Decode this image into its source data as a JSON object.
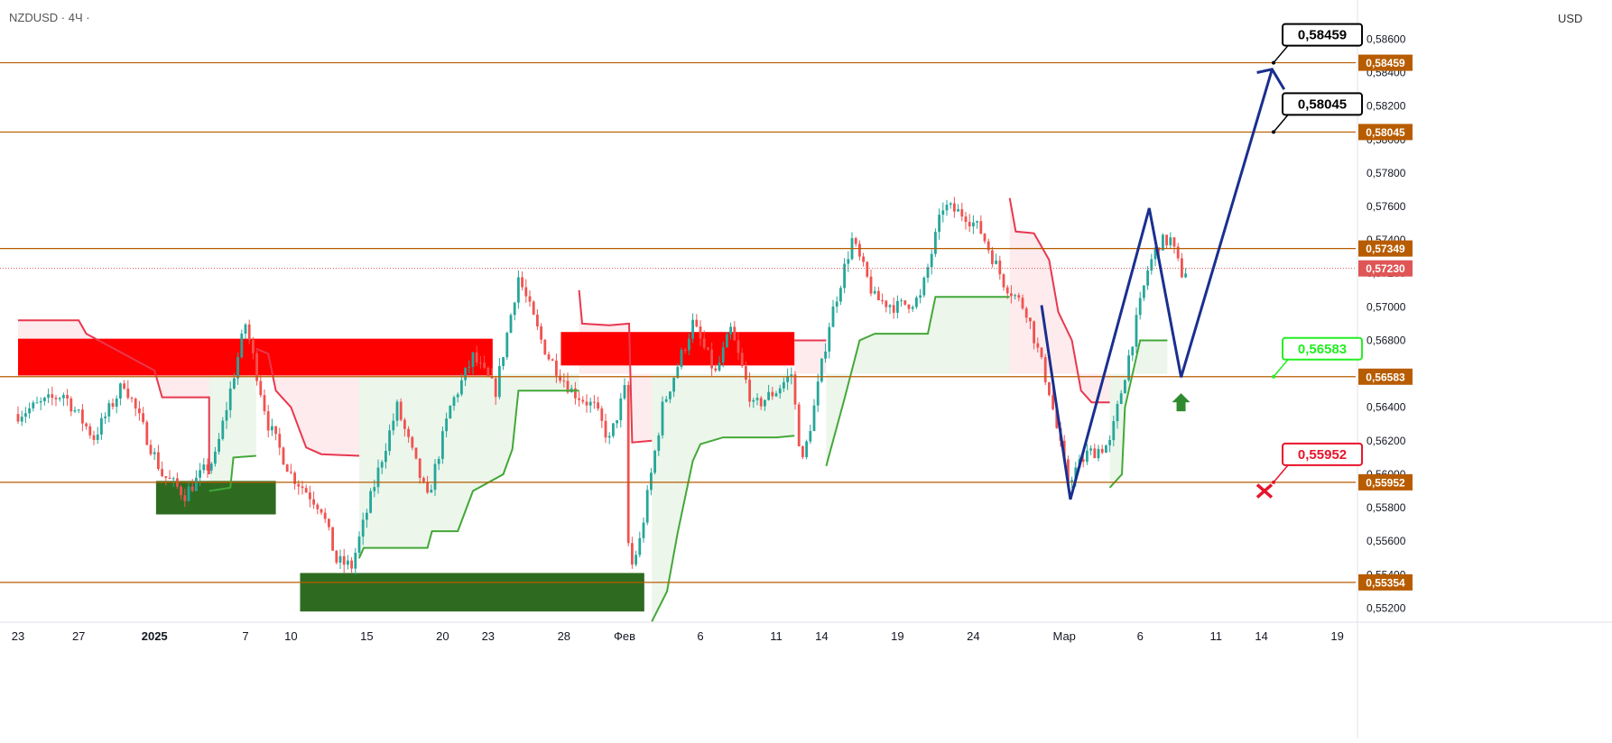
{
  "symbol": "NZDUSD · 4Ч ·",
  "currency": "USD",
  "colors": {
    "level_line": "#b85c00",
    "level_badge": "#b85c00",
    "price_badge": "#e05555",
    "up_candle": "#26a69a",
    "down_candle": "#ef5350",
    "supertrend_up": "#43a838",
    "supertrend_down": "#e8384f",
    "supply_zone": "#ff0000",
    "demand_zone": "#2e6b21",
    "forecast_line": "#1a2f8f",
    "target_callout": "#000000",
    "buy_callout": "#22ee22",
    "stop_callout": "#e8142a"
  },
  "chart_data": {
    "type": "candlestick",
    "ylim": [
      0.551,
      0.5878
    ],
    "y_ticks": [
      "0,55200",
      "0,55400",
      "0,55600",
      "0,55800",
      "0,56000",
      "0,56200",
      "0,56400",
      "0,56600",
      "0,56800",
      "0,57000",
      "0,57200",
      "0,57400",
      "0,57600",
      "0,57800",
      "0,58000",
      "0,58200",
      "0,58400",
      "0,58600"
    ],
    "x_ticks": [
      {
        "label": "23",
        "day": 0
      },
      {
        "label": "27",
        "day": 4
      },
      {
        "label": "2025",
        "day": 9
      },
      {
        "label": "7",
        "day": 15
      },
      {
        "label": "10",
        "day": 18
      },
      {
        "label": "15",
        "day": 23
      },
      {
        "label": "20",
        "day": 28
      },
      {
        "label": "23",
        "day": 31
      },
      {
        "label": "28",
        "day": 36
      },
      {
        "label": "Фев",
        "day": 40
      },
      {
        "label": "6",
        "day": 45
      },
      {
        "label": "11",
        "day": 50
      },
      {
        "label": "14",
        "day": 53
      },
      {
        "label": "19",
        "day": 58
      },
      {
        "label": "24",
        "day": 63
      },
      {
        "label": "Мар",
        "day": 69
      },
      {
        "label": "6",
        "day": 74
      },
      {
        "label": "11",
        "day": 79
      },
      {
        "label": "14",
        "day": 82
      },
      {
        "label": "19",
        "day": 87
      }
    ],
    "price_anchors": [
      [
        0,
        0.5636
      ],
      [
        3,
        0.5648
      ],
      [
        5,
        0.5622
      ],
      [
        7,
        0.5655
      ],
      [
        9.5,
        0.56
      ],
      [
        11,
        0.5588
      ],
      [
        13,
        0.561
      ],
      [
        15,
        0.569
      ],
      [
        16.5,
        0.563
      ],
      [
        18,
        0.56
      ],
      [
        20,
        0.558
      ],
      [
        21,
        0.5548
      ],
      [
        22,
        0.5545
      ],
      [
        24,
        0.561
      ],
      [
        25,
        0.564
      ],
      [
        27,
        0.5585
      ],
      [
        28.5,
        0.564
      ],
      [
        30,
        0.567
      ],
      [
        31.5,
        0.565
      ],
      [
        33,
        0.5718
      ],
      [
        34.5,
        0.568
      ],
      [
        35,
        0.567
      ],
      [
        36.5,
        0.565
      ],
      [
        38,
        0.564
      ],
      [
        39,
        0.562
      ],
      [
        40,
        0.565
      ],
      [
        40.3,
        0.554
      ],
      [
        41,
        0.556
      ],
      [
        42.5,
        0.564
      ],
      [
        44.5,
        0.569
      ],
      [
        46,
        0.566
      ],
      [
        47,
        0.5686
      ],
      [
        48.5,
        0.564
      ],
      [
        50,
        0.565
      ],
      [
        51,
        0.566
      ],
      [
        51.7,
        0.5605
      ],
      [
        52.5,
        0.564
      ],
      [
        53.5,
        0.569
      ],
      [
        55,
        0.574
      ],
      [
        56.5,
        0.5705
      ],
      [
        58,
        0.57
      ],
      [
        59.5,
        0.5705
      ],
      [
        61,
        0.576
      ],
      [
        62.5,
        0.5755
      ],
      [
        63.5,
        0.5745
      ],
      [
        65,
        0.5715
      ],
      [
        66.5,
        0.5698
      ],
      [
        68,
        0.565
      ],
      [
        69.2,
        0.5596
      ],
      [
        70.5,
        0.5612
      ],
      [
        72,
        0.5618
      ],
      [
        73,
        0.566
      ],
      [
        74.5,
        0.5722
      ],
      [
        75.2,
        0.5738
      ],
      [
        76,
        0.574
      ],
      [
        76.7,
        0.572
      ],
      [
        77.2,
        0.5723
      ]
    ],
    "price_range": {
      "high": 0.577,
      "low": 0.553
    },
    "levels": [
      {
        "label": "0,58459",
        "value": 0.58459
      },
      {
        "label": "0,58045",
        "value": 0.58045
      },
      {
        "label": "0,57349",
        "value": 0.57349
      },
      {
        "label": "0,56583",
        "value": 0.56583
      },
      {
        "label": "0,55952",
        "value": 0.55952
      },
      {
        "label": "0,55354",
        "value": 0.55354
      }
    ],
    "current_price": {
      "label": "0,57230",
      "value": 0.5723
    },
    "supply_zones": [
      {
        "x0": 0,
        "x1": 31.3,
        "y0": 0.5659,
        "y1": 0.5681
      },
      {
        "x0": 35.8,
        "x1": 51.2,
        "y0": 0.5665,
        "y1": 0.5685
      }
    ],
    "demand_zones": [
      {
        "x0": 9.1,
        "x1": 17.0,
        "y0": 0.5576,
        "y1": 0.5596
      },
      {
        "x0": 18.6,
        "x1": 41.3,
        "y0": 0.5518,
        "y1": 0.5541
      }
    ],
    "supertrend_down": [
      [
        [
          0,
          0.5692
        ],
        [
          4,
          0.5692
        ],
        [
          4.5,
          0.5684
        ],
        [
          9,
          0.5662
        ],
        [
          9.5,
          0.5646
        ],
        [
          12.6,
          0.5646
        ],
        [
          12.6,
          0.56
        ]
      ],
      [
        [
          15.7,
          0.5675
        ],
        [
          16.5,
          0.5672
        ],
        [
          17,
          0.565
        ],
        [
          18,
          0.564
        ],
        [
          19,
          0.5616
        ],
        [
          20,
          0.5612
        ],
        [
          22.5,
          0.5611
        ]
      ],
      [
        [
          37,
          0.571
        ],
        [
          37.2,
          0.569
        ],
        [
          39,
          0.5689
        ],
        [
          40.3,
          0.569
        ],
        [
          40.5,
          0.5619
        ],
        [
          41.8,
          0.562
        ]
      ],
      [
        [
          51.2,
          0.568
        ],
        [
          53.3,
          0.568
        ]
      ],
      [
        [
          65.4,
          0.5765
        ],
        [
          65.8,
          0.5745
        ],
        [
          67,
          0.5744
        ],
        [
          68,
          0.5728
        ],
        [
          68.6,
          0.5697
        ],
        [
          69.5,
          0.568
        ],
        [
          70.1,
          0.565
        ],
        [
          70.8,
          0.5643
        ],
        [
          72,
          0.5643
        ]
      ]
    ],
    "supertrend_up": [
      [
        [
          12.6,
          0.559
        ],
        [
          14,
          0.5592
        ],
        [
          14.2,
          0.561
        ],
        [
          15.7,
          0.5611
        ]
      ],
      [
        [
          22.5,
          0.555
        ],
        [
          22.8,
          0.5556
        ],
        [
          27,
          0.5556
        ],
        [
          27.3,
          0.5566
        ],
        [
          29,
          0.5566
        ],
        [
          30,
          0.559
        ],
        [
          32,
          0.56
        ],
        [
          32.6,
          0.5615
        ],
        [
          33,
          0.565
        ],
        [
          37,
          0.565
        ]
      ],
      [
        [
          41.8,
          0.5512
        ],
        [
          42.8,
          0.553
        ],
        [
          43.5,
          0.5565
        ],
        [
          44.5,
          0.5608
        ],
        [
          45,
          0.5618
        ],
        [
          46.5,
          0.5622
        ],
        [
          50,
          0.5622
        ],
        [
          51.2,
          0.5623
        ]
      ],
      [
        [
          53.3,
          0.5605
        ],
        [
          54.5,
          0.5645
        ],
        [
          55.5,
          0.568
        ],
        [
          56.5,
          0.5684
        ],
        [
          60,
          0.5684
        ],
        [
          60.5,
          0.5706
        ],
        [
          65,
          0.5706
        ],
        [
          65.4,
          0.5706
        ]
      ],
      [
        [
          72,
          0.5592
        ],
        [
          72.8,
          0.56
        ],
        [
          73,
          0.564
        ],
        [
          74,
          0.568
        ],
        [
          75.8,
          0.568
        ]
      ]
    ],
    "forecast_path": [
      [
        67.5,
        0.5701
      ],
      [
        69.4,
        0.5585
      ],
      [
        74.6,
        0.5759
      ],
      [
        76.7,
        0.5658
      ],
      [
        82.7,
        0.5842
      ],
      [
        83.5,
        0.583
      ]
    ],
    "forecast_arrowhead": [
      [
        81.7,
        0.584
      ],
      [
        82.7,
        0.5842
      ],
      [
        83.5,
        0.583
      ]
    ],
    "callouts": [
      {
        "label": "0,58459",
        "value": 0.58459,
        "anchor_day": 82.8,
        "kind": "target"
      },
      {
        "label": "0,58045",
        "value": 0.58045,
        "anchor_day": 82.8,
        "kind": "target"
      },
      {
        "label": "0,56583",
        "value": 0.56583,
        "anchor_day": 82.8,
        "kind": "buy"
      },
      {
        "label": "0,55952",
        "value": 0.55952,
        "anchor_day": 82.8,
        "kind": "stop"
      }
    ],
    "buy_marker": {
      "day": 76.7,
      "value": 0.5643
    },
    "stop_marker": {
      "day": 82.2,
      "value": 0.559
    }
  }
}
